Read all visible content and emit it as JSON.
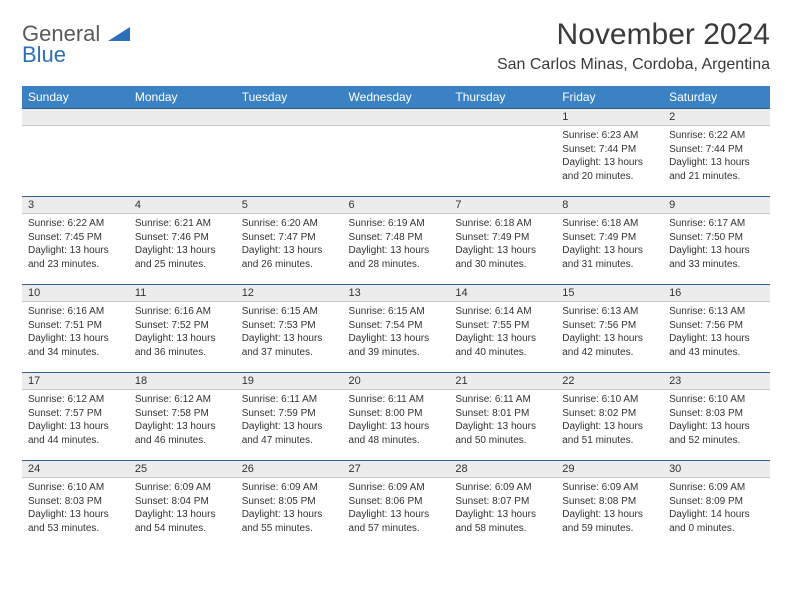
{
  "logo": {
    "line1": "General",
    "line2": "Blue"
  },
  "title": "November 2024",
  "location": "San Carlos Minas, Cordoba, Argentina",
  "header_bg": "#3b82c4",
  "daynum_bg": "#ececec",
  "daynum_border_top": "#2f5d8a",
  "weekdays": [
    "Sunday",
    "Monday",
    "Tuesday",
    "Wednesday",
    "Thursday",
    "Friday",
    "Saturday"
  ],
  "weeks": [
    [
      {
        "n": "",
        "sr": "",
        "ss": "",
        "dl": ""
      },
      {
        "n": "",
        "sr": "",
        "ss": "",
        "dl": ""
      },
      {
        "n": "",
        "sr": "",
        "ss": "",
        "dl": ""
      },
      {
        "n": "",
        "sr": "",
        "ss": "",
        "dl": ""
      },
      {
        "n": "",
        "sr": "",
        "ss": "",
        "dl": ""
      },
      {
        "n": "1",
        "sr": "Sunrise: 6:23 AM",
        "ss": "Sunset: 7:44 PM",
        "dl": "Daylight: 13 hours and 20 minutes."
      },
      {
        "n": "2",
        "sr": "Sunrise: 6:22 AM",
        "ss": "Sunset: 7:44 PM",
        "dl": "Daylight: 13 hours and 21 minutes."
      }
    ],
    [
      {
        "n": "3",
        "sr": "Sunrise: 6:22 AM",
        "ss": "Sunset: 7:45 PM",
        "dl": "Daylight: 13 hours and 23 minutes."
      },
      {
        "n": "4",
        "sr": "Sunrise: 6:21 AM",
        "ss": "Sunset: 7:46 PM",
        "dl": "Daylight: 13 hours and 25 minutes."
      },
      {
        "n": "5",
        "sr": "Sunrise: 6:20 AM",
        "ss": "Sunset: 7:47 PM",
        "dl": "Daylight: 13 hours and 26 minutes."
      },
      {
        "n": "6",
        "sr": "Sunrise: 6:19 AM",
        "ss": "Sunset: 7:48 PM",
        "dl": "Daylight: 13 hours and 28 minutes."
      },
      {
        "n": "7",
        "sr": "Sunrise: 6:18 AM",
        "ss": "Sunset: 7:49 PM",
        "dl": "Daylight: 13 hours and 30 minutes."
      },
      {
        "n": "8",
        "sr": "Sunrise: 6:18 AM",
        "ss": "Sunset: 7:49 PM",
        "dl": "Daylight: 13 hours and 31 minutes."
      },
      {
        "n": "9",
        "sr": "Sunrise: 6:17 AM",
        "ss": "Sunset: 7:50 PM",
        "dl": "Daylight: 13 hours and 33 minutes."
      }
    ],
    [
      {
        "n": "10",
        "sr": "Sunrise: 6:16 AM",
        "ss": "Sunset: 7:51 PM",
        "dl": "Daylight: 13 hours and 34 minutes."
      },
      {
        "n": "11",
        "sr": "Sunrise: 6:16 AM",
        "ss": "Sunset: 7:52 PM",
        "dl": "Daylight: 13 hours and 36 minutes."
      },
      {
        "n": "12",
        "sr": "Sunrise: 6:15 AM",
        "ss": "Sunset: 7:53 PM",
        "dl": "Daylight: 13 hours and 37 minutes."
      },
      {
        "n": "13",
        "sr": "Sunrise: 6:15 AM",
        "ss": "Sunset: 7:54 PM",
        "dl": "Daylight: 13 hours and 39 minutes."
      },
      {
        "n": "14",
        "sr": "Sunrise: 6:14 AM",
        "ss": "Sunset: 7:55 PM",
        "dl": "Daylight: 13 hours and 40 minutes."
      },
      {
        "n": "15",
        "sr": "Sunrise: 6:13 AM",
        "ss": "Sunset: 7:56 PM",
        "dl": "Daylight: 13 hours and 42 minutes."
      },
      {
        "n": "16",
        "sr": "Sunrise: 6:13 AM",
        "ss": "Sunset: 7:56 PM",
        "dl": "Daylight: 13 hours and 43 minutes."
      }
    ],
    [
      {
        "n": "17",
        "sr": "Sunrise: 6:12 AM",
        "ss": "Sunset: 7:57 PM",
        "dl": "Daylight: 13 hours and 44 minutes."
      },
      {
        "n": "18",
        "sr": "Sunrise: 6:12 AM",
        "ss": "Sunset: 7:58 PM",
        "dl": "Daylight: 13 hours and 46 minutes."
      },
      {
        "n": "19",
        "sr": "Sunrise: 6:11 AM",
        "ss": "Sunset: 7:59 PM",
        "dl": "Daylight: 13 hours and 47 minutes."
      },
      {
        "n": "20",
        "sr": "Sunrise: 6:11 AM",
        "ss": "Sunset: 8:00 PM",
        "dl": "Daylight: 13 hours and 48 minutes."
      },
      {
        "n": "21",
        "sr": "Sunrise: 6:11 AM",
        "ss": "Sunset: 8:01 PM",
        "dl": "Daylight: 13 hours and 50 minutes."
      },
      {
        "n": "22",
        "sr": "Sunrise: 6:10 AM",
        "ss": "Sunset: 8:02 PM",
        "dl": "Daylight: 13 hours and 51 minutes."
      },
      {
        "n": "23",
        "sr": "Sunrise: 6:10 AM",
        "ss": "Sunset: 8:03 PM",
        "dl": "Daylight: 13 hours and 52 minutes."
      }
    ],
    [
      {
        "n": "24",
        "sr": "Sunrise: 6:10 AM",
        "ss": "Sunset: 8:03 PM",
        "dl": "Daylight: 13 hours and 53 minutes."
      },
      {
        "n": "25",
        "sr": "Sunrise: 6:09 AM",
        "ss": "Sunset: 8:04 PM",
        "dl": "Daylight: 13 hours and 54 minutes."
      },
      {
        "n": "26",
        "sr": "Sunrise: 6:09 AM",
        "ss": "Sunset: 8:05 PM",
        "dl": "Daylight: 13 hours and 55 minutes."
      },
      {
        "n": "27",
        "sr": "Sunrise: 6:09 AM",
        "ss": "Sunset: 8:06 PM",
        "dl": "Daylight: 13 hours and 57 minutes."
      },
      {
        "n": "28",
        "sr": "Sunrise: 6:09 AM",
        "ss": "Sunset: 8:07 PM",
        "dl": "Daylight: 13 hours and 58 minutes."
      },
      {
        "n": "29",
        "sr": "Sunrise: 6:09 AM",
        "ss": "Sunset: 8:08 PM",
        "dl": "Daylight: 13 hours and 59 minutes."
      },
      {
        "n": "30",
        "sr": "Sunrise: 6:09 AM",
        "ss": "Sunset: 8:09 PM",
        "dl": "Daylight: 14 hours and 0 minutes."
      }
    ]
  ]
}
